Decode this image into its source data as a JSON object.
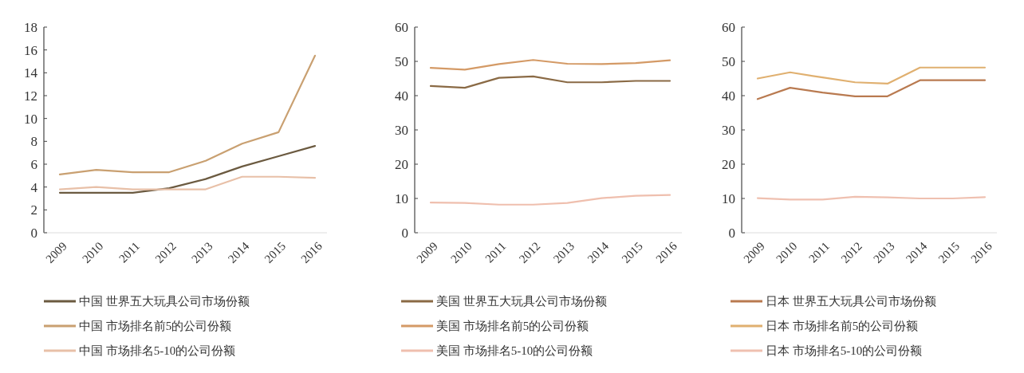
{
  "chart_data": [
    {
      "type": "line",
      "categories": [
        "2009",
        "2010",
        "2011",
        "2012",
        "2013",
        "2014",
        "2015",
        "2016"
      ],
      "ylim": [
        0,
        18
      ],
      "yticks": [
        0,
        2,
        4,
        6,
        8,
        10,
        12,
        14,
        16,
        18
      ],
      "legend": "bottom",
      "series": [
        {
          "name": "中国 世界五大玩具公司市场份额",
          "color": "#6b5a40",
          "values": [
            3.5,
            3.5,
            3.5,
            3.9,
            4.7,
            5.8,
            6.7,
            7.6
          ]
        },
        {
          "name": "中国 市场排名前5的公司份额",
          "color": "#c9a071",
          "values": [
            5.1,
            5.5,
            5.3,
            5.3,
            6.3,
            7.8,
            8.8,
            15.5
          ]
        },
        {
          "name": "中国 市场排名5-10的公司份额",
          "color": "#e8c0a8",
          "values": [
            3.8,
            4.0,
            3.8,
            3.8,
            3.8,
            4.9,
            4.9,
            4.8
          ]
        }
      ]
    },
    {
      "type": "line",
      "categories": [
        "2009",
        "2010",
        "2011",
        "2012",
        "2013",
        "2014",
        "2015",
        "2016"
      ],
      "ylim": [
        0,
        60
      ],
      "yticks": [
        0,
        10,
        20,
        30,
        40,
        50,
        60
      ],
      "legend": "bottom",
      "series": [
        {
          "name": "美国 世界五大玩具公司市场份额",
          "color": "#8a6a45",
          "values": [
            42.8,
            42.3,
            45.2,
            45.6,
            43.9,
            43.9,
            44.3,
            44.3
          ]
        },
        {
          "name": "美国 市场排名前5的公司份额",
          "color": "#d49a66",
          "values": [
            48.1,
            47.6,
            49.2,
            50.4,
            49.3,
            49.2,
            49.5,
            50.3
          ]
        },
        {
          "name": "美国 市场排名5-10的公司份额",
          "color": "#efbfae",
          "values": [
            8.8,
            8.7,
            8.2,
            8.2,
            8.7,
            10.1,
            10.8,
            11.0
          ]
        }
      ]
    },
    {
      "type": "line",
      "categories": [
        "2009",
        "2010",
        "2011",
        "2012",
        "2013",
        "2014",
        "2015",
        "2016"
      ],
      "ylim": [
        0,
        60
      ],
      "yticks": [
        0,
        10,
        20,
        30,
        40,
        50,
        60
      ],
      "legend": "bottom",
      "series": [
        {
          "name": "日本 世界五大玩具公司市场份额",
          "color": "#b97a50",
          "values": [
            39.0,
            42.3,
            40.9,
            39.8,
            39.8,
            44.5,
            44.5,
            44.5
          ]
        },
        {
          "name": "日本 市场排名前5的公司份额",
          "color": "#e0b070",
          "values": [
            45.0,
            46.8,
            45.3,
            43.9,
            43.5,
            48.2,
            48.2,
            48.2
          ]
        },
        {
          "name": "日本 市场排名5-10的公司份额",
          "color": "#efc0b0",
          "values": [
            10.1,
            9.7,
            9.7,
            10.5,
            10.3,
            10.0,
            10.0,
            10.4
          ]
        }
      ]
    }
  ]
}
